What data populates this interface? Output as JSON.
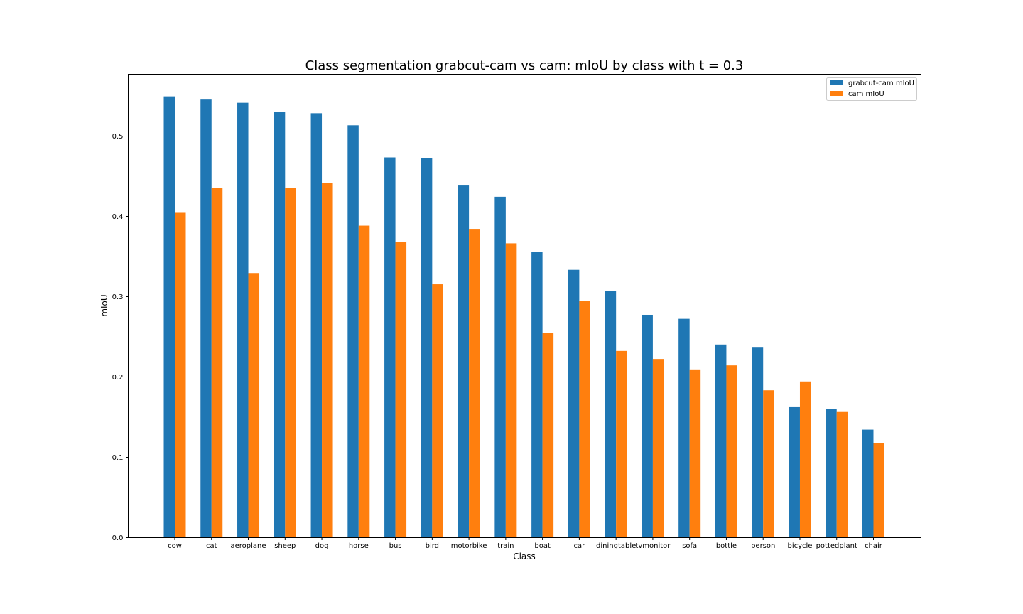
{
  "chart_data": {
    "type": "bar",
    "title": "Class segmentation grabcut-cam vs cam: mIoU by class with t = 0.3",
    "xlabel": "Class",
    "ylabel": "mIoU",
    "ylim": [
      0,
      0.575
    ],
    "yticks": [
      "0.0",
      "0.1",
      "0.2",
      "0.3",
      "0.4",
      "0.5"
    ],
    "ytick_values": [
      0,
      0.1,
      0.2,
      0.3,
      0.4,
      0.5
    ],
    "grid": false,
    "legend_position": "top-right",
    "categories": [
      "cow",
      "cat",
      "aeroplane",
      "sheep",
      "dog",
      "horse",
      "bus",
      "bird",
      "motorbike",
      "train",
      "boat",
      "car",
      "diningtable",
      "tvmonitor",
      "sofa",
      "bottle",
      "person",
      "bicycle",
      "pottedplant",
      "chair"
    ],
    "series": [
      {
        "name": "grabcut-cam mIoU",
        "color": "#1f77b4",
        "values": [
          0.549,
          0.545,
          0.541,
          0.53,
          0.528,
          0.513,
          0.473,
          0.472,
          0.438,
          0.424,
          0.355,
          0.333,
          0.307,
          0.277,
          0.272,
          0.24,
          0.237,
          0.162,
          0.16,
          0.134
        ]
      },
      {
        "name": "cam mIoU",
        "color": "#ff7f0e",
        "values": [
          0.404,
          0.435,
          0.329,
          0.435,
          0.441,
          0.388,
          0.368,
          0.315,
          0.384,
          0.366,
          0.254,
          0.294,
          0.232,
          0.222,
          0.209,
          0.214,
          0.183,
          0.194,
          0.156,
          0.117
        ]
      }
    ]
  }
}
